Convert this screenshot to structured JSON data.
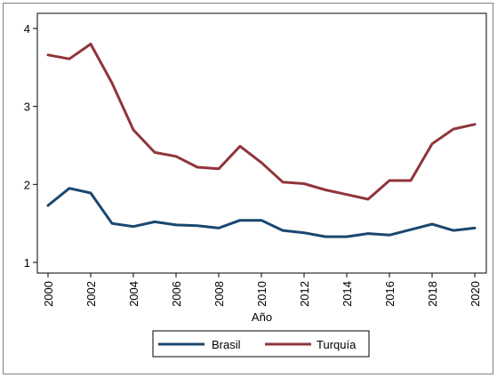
{
  "chart_data": {
    "type": "line",
    "title": "",
    "xlabel": "Año",
    "ylabel": "",
    "x": [
      2000,
      2001,
      2002,
      2003,
      2004,
      2005,
      2006,
      2007,
      2008,
      2009,
      2010,
      2011,
      2012,
      2013,
      2014,
      2015,
      2016,
      2017,
      2018,
      2019,
      2020
    ],
    "x_ticks": [
      "2000",
      "2002",
      "2004",
      "2006",
      "2008",
      "2010",
      "2012",
      "2014",
      "2016",
      "2018",
      "2020"
    ],
    "y_ticks": [
      "1",
      "2",
      "3",
      "4"
    ],
    "xlim": [
      2000,
      2020
    ],
    "ylim": [
      1,
      4
    ],
    "grid": false,
    "legend_position": "bottom",
    "series": [
      {
        "name": "Brasil",
        "color": "#1a476f",
        "values": [
          1.73,
          1.95,
          1.89,
          1.5,
          1.46,
          1.52,
          1.48,
          1.47,
          1.44,
          1.54,
          1.54,
          1.41,
          1.38,
          1.33,
          1.33,
          1.37,
          1.35,
          1.42,
          1.49,
          1.41,
          1.44
        ]
      },
      {
        "name": "Turquía",
        "color": "#90353b",
        "values": [
          3.66,
          3.61,
          3.8,
          3.3,
          2.7,
          2.41,
          2.36,
          2.22,
          2.2,
          2.49,
          2.28,
          2.03,
          2.01,
          1.93,
          1.87,
          1.81,
          2.05,
          2.05,
          2.52,
          2.71,
          2.77
        ]
      }
    ]
  }
}
